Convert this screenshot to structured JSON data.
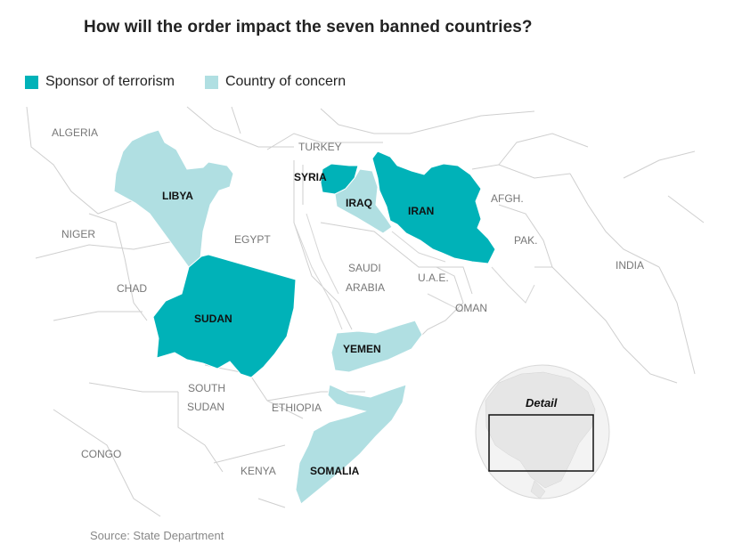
{
  "title": "How will the order impact the seven banned countries?",
  "legend": [
    {
      "label": "Sponsor of terrorism",
      "color": "#00b2b8"
    },
    {
      "label": "Country of concern",
      "color": "#b0dfe2"
    }
  ],
  "banned_countries": {
    "libya": {
      "label": "LIBYA",
      "category": "Country of concern"
    },
    "syria": {
      "label": "SYRIA",
      "category": "Sponsor of terrorism"
    },
    "iraq": {
      "label": "IRAQ",
      "category": "Country of concern"
    },
    "iran": {
      "label": "IRAN",
      "category": "Sponsor of terrorism"
    },
    "sudan": {
      "label": "SUDAN",
      "category": "Sponsor of terrorism"
    },
    "yemen": {
      "label": "YEMEN",
      "category": "Country of concern"
    },
    "somalia": {
      "label": "SOMALIA",
      "category": "Country of concern"
    }
  },
  "other_countries": {
    "algeria": "ALGERIA",
    "turkey": "TURKEY",
    "niger": "NIGER",
    "egypt": "EGYPT",
    "chad": "CHAD",
    "saudi_line1": "SAUDI",
    "saudi_line2": "ARABIA",
    "uae": "U.A.E.",
    "afghanistan": "AFGH.",
    "pakistan": "PAK.",
    "india": "INDIA",
    "oman": "OMAN",
    "south_sudan_line1": "SOUTH",
    "south_sudan_line2": "SUDAN",
    "ethiopia": "ETHIOPIA",
    "congo": "CONGO",
    "kenya": "KENYA"
  },
  "inset": {
    "label": "Detail"
  },
  "source": "Source: State Department"
}
